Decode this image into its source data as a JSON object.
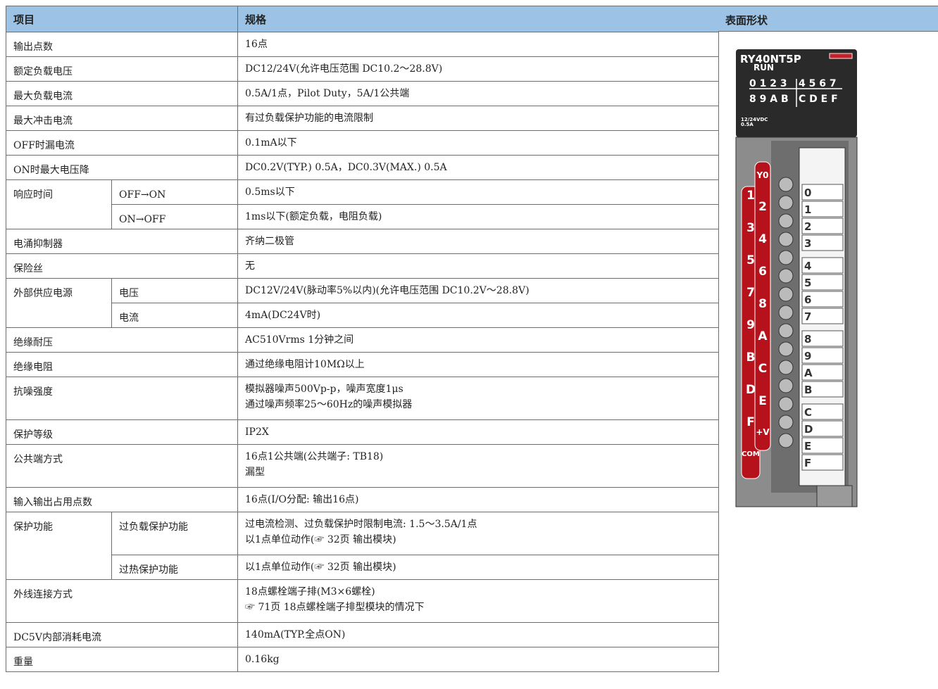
{
  "table": {
    "header": [
      "项目",
      "规格",
      "表面形状"
    ],
    "rows": [
      {
        "item": "输出点数",
        "spec": [
          "16点"
        ]
      },
      {
        "item": "额定负载电压",
        "spec": [
          "DC12/24V(允许电压范围 DC10.2～28.8V)"
        ]
      },
      {
        "item": "最大负载电流",
        "spec": [
          "0.5A/1点，Pilot Duty，5A/1公共端"
        ]
      },
      {
        "item": "最大冲击电流",
        "spec": [
          "有过负载保护功能的电流限制"
        ]
      },
      {
        "item": "OFF时漏电流",
        "spec": [
          "0.1mA以下"
        ]
      },
      {
        "item": "ON时最大电压降",
        "spec": [
          "DC0.2V(TYP.) 0.5A，DC0.3V(MAX.) 0.5A"
        ]
      },
      {
        "item": "响应时间",
        "subs": [
          {
            "sub": "OFF→ON",
            "spec": [
              "0.5ms以下"
            ]
          },
          {
            "sub": "ON→OFF",
            "spec": [
              "1ms以下(额定负载，电阻负载)"
            ]
          }
        ]
      },
      {
        "item": "电涌抑制器",
        "spec": [
          "齐纳二极管"
        ]
      },
      {
        "item": "保险丝",
        "spec": [
          "无"
        ]
      },
      {
        "item": "外部供应电源",
        "subs": [
          {
            "sub": "电压",
            "spec": [
              "DC12V/24V(脉动率5%以内)(允许电压范围 DC10.2V～28.8V)"
            ]
          },
          {
            "sub": "电流",
            "spec": [
              "4mA(DC24V时)"
            ]
          }
        ]
      },
      {
        "item": "绝缘耐压",
        "spec": [
          "AC510Vrms 1分钟之间"
        ]
      },
      {
        "item": "绝缘电阻",
        "spec": [
          "通过绝缘电阻计10MΩ以上"
        ]
      },
      {
        "item": "抗噪强度",
        "spec": [
          "模拟器噪声500Vp-p，噪声宽度1μs",
          "通过噪声频率25～60Hz的噪声模拟器"
        ]
      },
      {
        "item": "保护等级",
        "spec": [
          "IP2X"
        ]
      },
      {
        "item": "公共端方式",
        "spec": [
          "16点1公共端(公共端子: TB18)",
          "漏型"
        ]
      },
      {
        "item": "输入输出占用点数",
        "spec": [
          "16点(I/O分配: 输出16点)"
        ]
      },
      {
        "item": "保护功能",
        "subs": [
          {
            "sub": "过负载保护功能",
            "spec": [
              "过电流检测、过负载保护时限制电流: 1.5～3.5A/1点",
              "以1点单位动作(☞ 32页 输出模块)"
            ]
          },
          {
            "sub": "过热保护功能",
            "spec": [
              "以1点单位动作(☞ 32页 输出模块)"
            ]
          }
        ]
      },
      {
        "item": "外线连接方式",
        "spec": [
          "18点螺栓端子排(M3×6螺栓)",
          "☞ 71页 18点螺栓端子排型模块的情况下"
        ]
      },
      {
        "item": "DC5V内部消耗电流",
        "spec": [
          "140mA(TYP.全点ON)"
        ]
      },
      {
        "item": "重量",
        "spec": [
          "0.16kg"
        ]
      }
    ]
  },
  "module": {
    "model": "RY40NT5P",
    "run": "RUN",
    "led_rows": [
      [
        "0 1 2 3",
        "4 5 6 7"
      ],
      [
        "8 9 A B",
        "C D E F"
      ]
    ],
    "rating": [
      "12/24VDC",
      "0.5A"
    ],
    "left_terminals": [
      "1",
      "3",
      "5",
      "7",
      "9",
      "B",
      "D",
      "F",
      "COM"
    ],
    "right_terminals": [
      "Y0",
      "2",
      "4",
      "6",
      "8",
      "A",
      "C",
      "E",
      "+V"
    ],
    "strip_labels": [
      "0",
      "1",
      "2",
      "3",
      "4",
      "5",
      "6",
      "7",
      "8",
      "9",
      "A",
      "B",
      "C",
      "D",
      "E",
      "F"
    ]
  }
}
